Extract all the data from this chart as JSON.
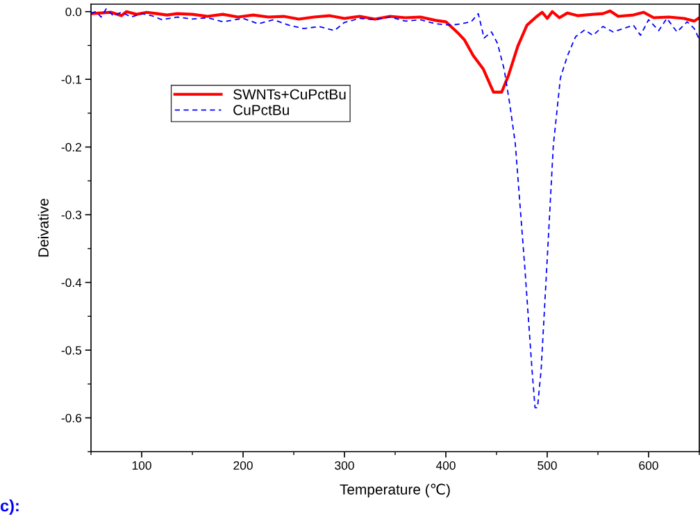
{
  "chart_data": {
    "type": "line",
    "xlabel": "Temperature (℃)",
    "ylabel": "Deivative",
    "annotations": [
      "c):"
    ],
    "xlim": [
      50,
      650
    ],
    "xticks": [
      100,
      200,
      300,
      400,
      500,
      600
    ],
    "ylim": [
      -0.65,
      0.011
    ],
    "yticks": [
      {
        "value": 0,
        "label": "0.0"
      },
      -0.1,
      -0.2,
      -0.3,
      -0.4,
      -0.5,
      -0.6
    ],
    "grid": false,
    "legend": "top left",
    "marker": "none",
    "series": [
      {
        "name": "SWNTs+CuPctBu",
        "color": "#ff0000",
        "line_style": "solid",
        "x": [
          50,
          60,
          70,
          80,
          85,
          95,
          105,
          115,
          125,
          135,
          150,
          165,
          180,
          195,
          210,
          225,
          240,
          255,
          270,
          285,
          300,
          315,
          330,
          345,
          360,
          375,
          390,
          400,
          411.6,
          418.5,
          427,
          437,
          447,
          455,
          461.6,
          471,
          480,
          489,
          495,
          500,
          505,
          512,
          520,
          530,
          545,
          555,
          562,
          570,
          585,
          595,
          605,
          620,
          635,
          645,
          650
        ],
        "values": [
          -0.003,
          -0.002,
          -0.001,
          -0.006,
          0.0,
          -0.004,
          -0.001,
          -0.003,
          -0.005,
          -0.003,
          -0.004,
          -0.007,
          -0.004,
          -0.008,
          -0.005,
          -0.008,
          -0.007,
          -0.011,
          -0.008,
          -0.006,
          -0.01,
          -0.007,
          -0.011,
          -0.007,
          -0.009,
          -0.008,
          -0.013,
          -0.015,
          -0.031,
          -0.042,
          -0.065,
          -0.085,
          -0.119,
          -0.119,
          -0.095,
          -0.051,
          -0.02,
          -0.008,
          -0.001,
          -0.01,
          0.0,
          -0.009,
          -0.002,
          -0.006,
          -0.004,
          -0.003,
          0.001,
          -0.007,
          -0.005,
          -0.001,
          -0.009,
          -0.008,
          -0.01,
          -0.014,
          -0.009
        ]
      },
      {
        "name": "CuPctBu",
        "color": "#0000ff",
        "line_style": "dashed",
        "x": [
          50,
          55,
          60,
          65,
          72,
          80,
          90,
          100,
          110,
          120,
          135,
          150,
          165,
          180,
          200,
          215,
          230,
          245,
          260,
          275,
          290,
          300,
          315,
          330,
          345,
          360,
          375,
          390,
          405,
          415,
          425,
          432,
          437.7,
          445,
          451,
          457.5,
          463,
          468.5,
          478,
          485,
          488,
          490.4,
          494,
          499,
          506,
          513,
          520,
          528,
          537,
          545,
          555,
          565,
          575,
          585,
          592,
          600,
          610,
          618,
          628,
          638,
          645,
          650
        ],
        "values": [
          -0.002,
          0.0,
          -0.008,
          0.004,
          -0.006,
          -0.001,
          -0.008,
          -0.003,
          -0.006,
          -0.012,
          -0.008,
          -0.011,
          -0.009,
          -0.015,
          -0.01,
          -0.018,
          -0.012,
          -0.02,
          -0.025,
          -0.022,
          -0.028,
          -0.016,
          -0.01,
          -0.012,
          -0.008,
          -0.014,
          -0.012,
          -0.018,
          -0.02,
          -0.018,
          -0.015,
          -0.003,
          -0.039,
          -0.03,
          -0.047,
          -0.085,
          -0.136,
          -0.195,
          -0.38,
          -0.529,
          -0.585,
          -0.585,
          -0.529,
          -0.393,
          -0.198,
          -0.098,
          -0.065,
          -0.037,
          -0.027,
          -0.035,
          -0.022,
          -0.03,
          -0.025,
          -0.02,
          -0.035,
          -0.012,
          -0.028,
          -0.01,
          -0.03,
          -0.015,
          -0.025,
          -0.041
        ]
      }
    ]
  }
}
